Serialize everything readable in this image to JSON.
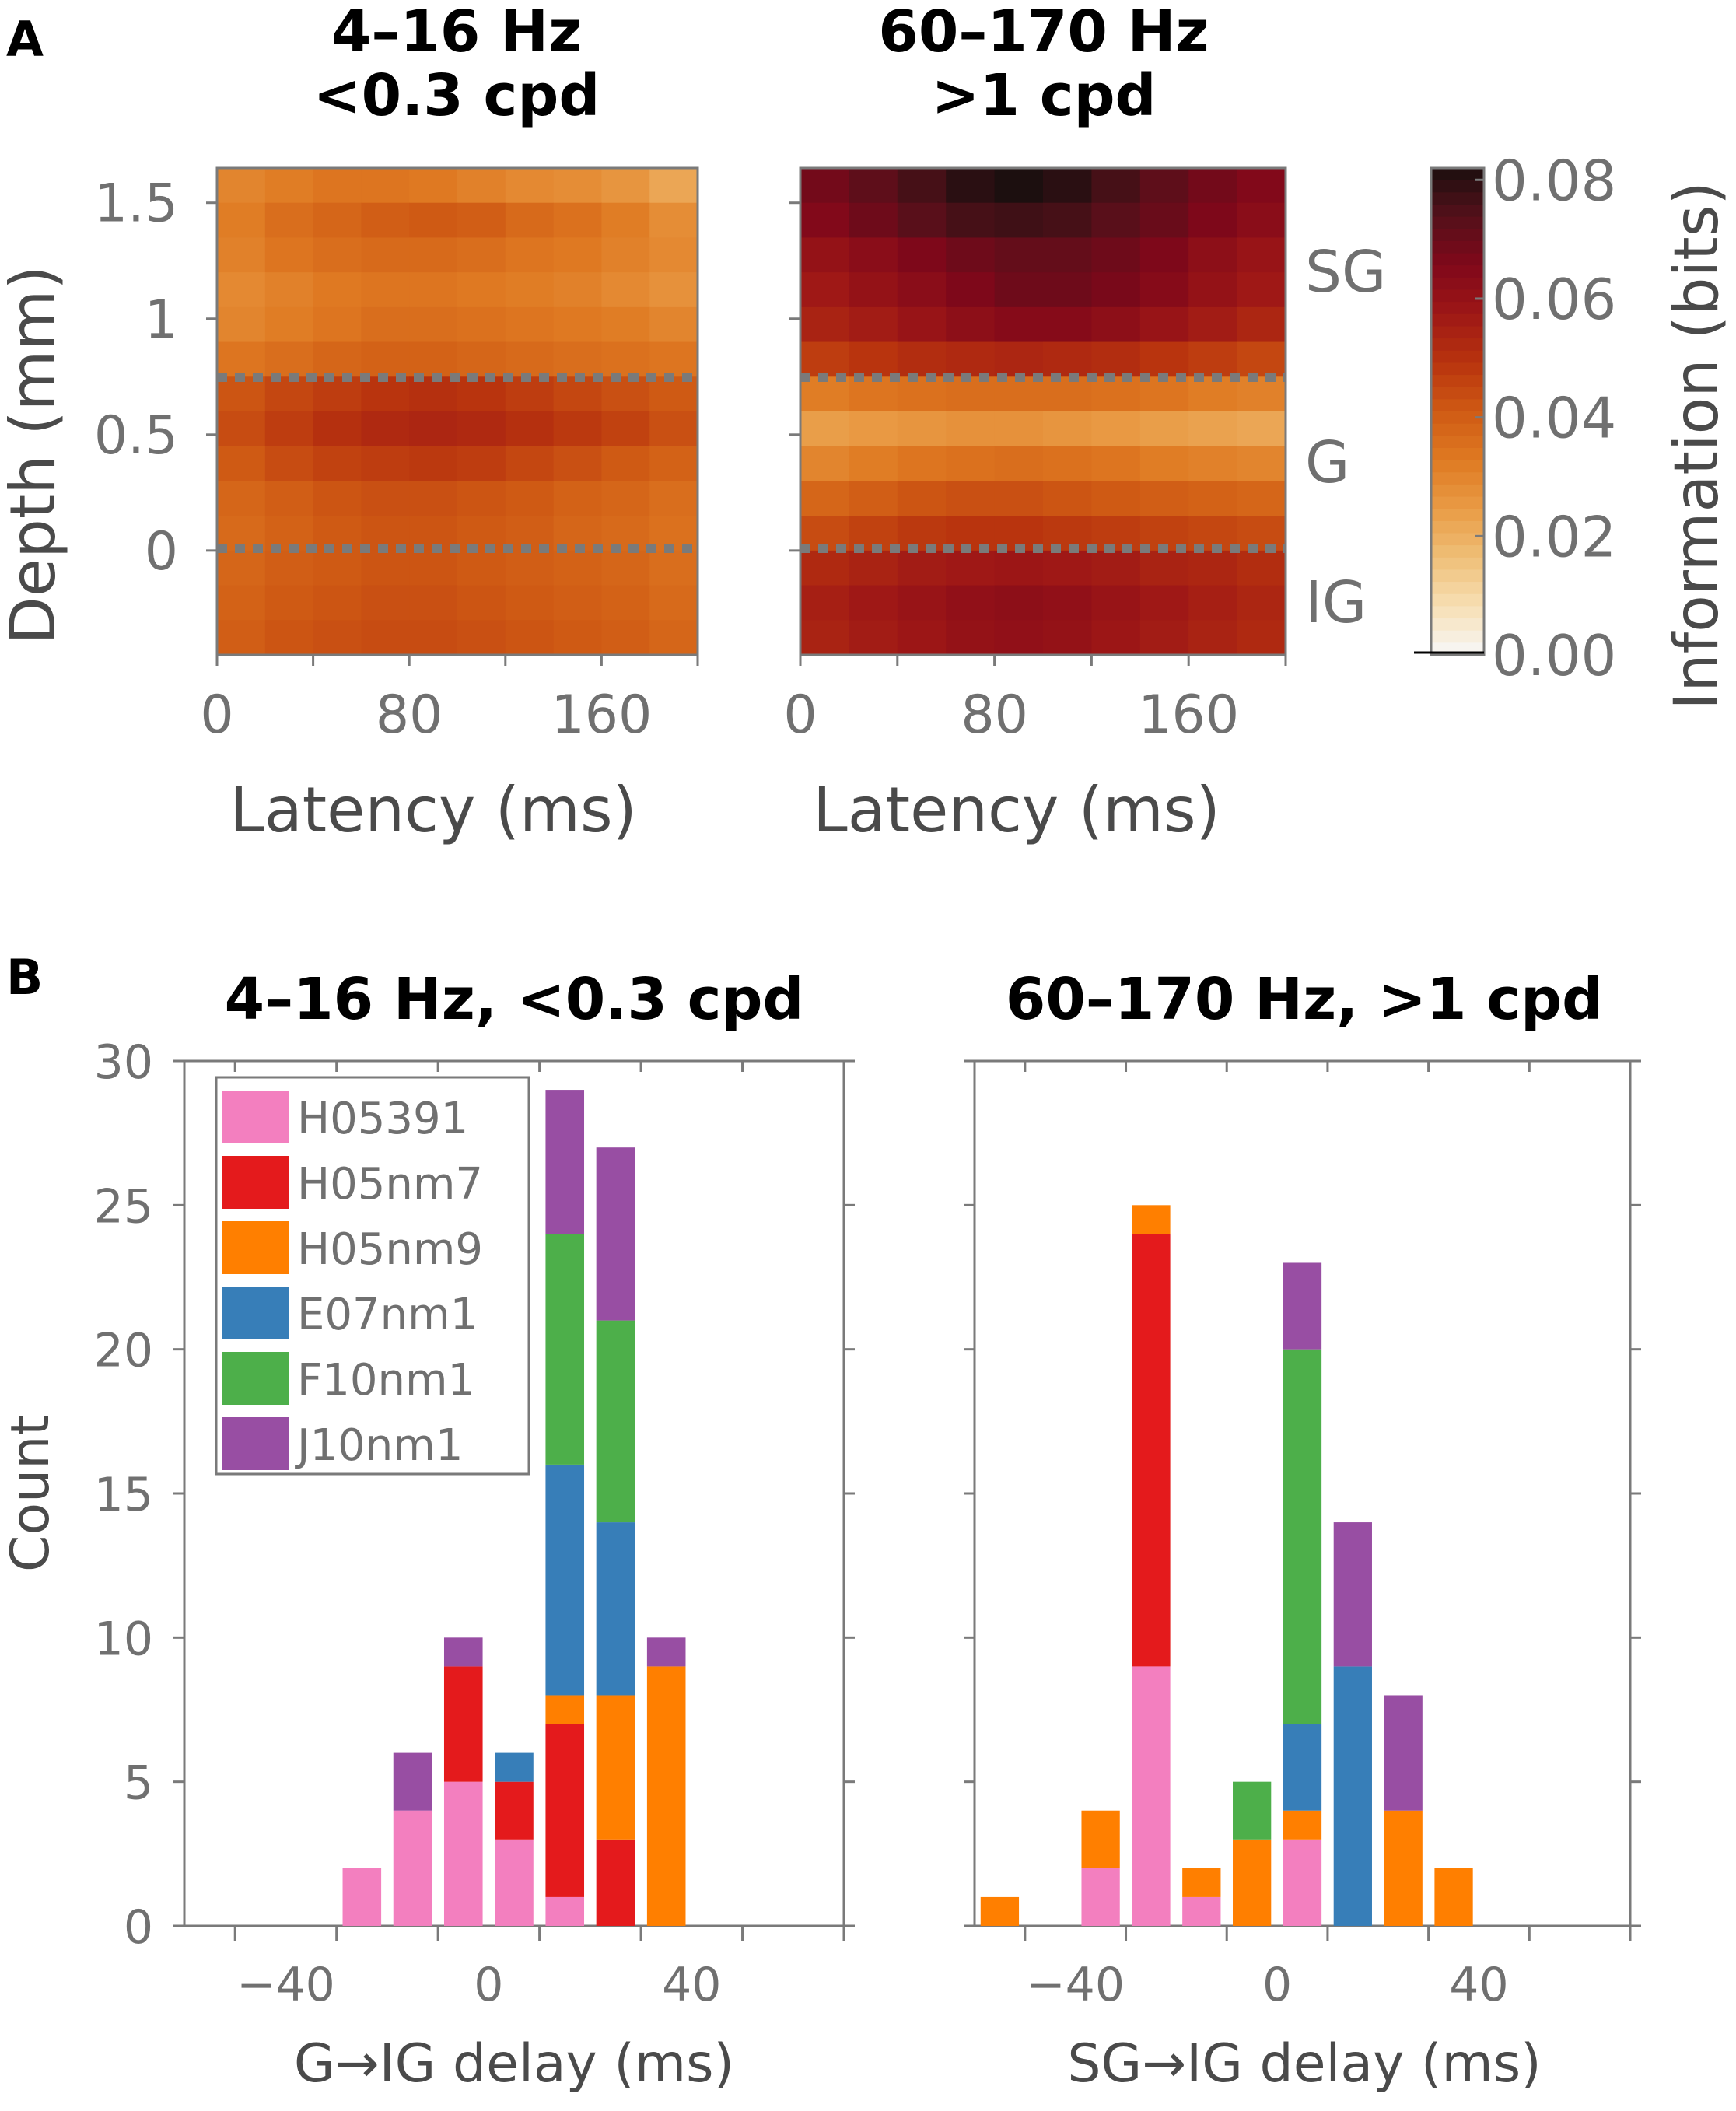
{
  "panel_labels": [
    "A",
    "B"
  ],
  "chart_data": [
    {
      "type": "heatmap",
      "title": "4–16 Hz\n<0.3 cpd",
      "xlabel": "Latency (ms)",
      "ylabel": "Depth (mm)",
      "xticks": [
        0,
        80,
        160
      ],
      "yticks": [
        1.5,
        1,
        0.5,
        0
      ],
      "xlim": [
        0,
        200
      ],
      "ylim": [
        -0.45,
        1.65
      ],
      "layer_boundaries": [
        0.75,
        0
      ],
      "value_range": [
        0,
        0.08
      ],
      "depth_rows": [
        1.6,
        1.45,
        1.3,
        1.15,
        1.0,
        0.85,
        0.7,
        0.55,
        0.4,
        0.25,
        0.1,
        -0.05,
        -0.2,
        -0.35
      ],
      "values": [
        [
          0.03,
          0.032,
          0.034,
          0.034,
          0.033,
          0.031,
          0.029,
          0.028,
          0.026,
          0.022
        ],
        [
          0.032,
          0.036,
          0.038,
          0.04,
          0.041,
          0.04,
          0.037,
          0.035,
          0.032,
          0.028
        ],
        [
          0.031,
          0.034,
          0.036,
          0.037,
          0.037,
          0.036,
          0.034,
          0.033,
          0.031,
          0.029
        ],
        [
          0.029,
          0.031,
          0.033,
          0.034,
          0.034,
          0.033,
          0.032,
          0.031,
          0.029,
          0.027
        ],
        [
          0.03,
          0.032,
          0.034,
          0.036,
          0.036,
          0.035,
          0.034,
          0.033,
          0.032,
          0.03
        ],
        [
          0.034,
          0.036,
          0.038,
          0.039,
          0.039,
          0.038,
          0.037,
          0.036,
          0.035,
          0.034
        ],
        [
          0.042,
          0.045,
          0.047,
          0.049,
          0.05,
          0.049,
          0.047,
          0.045,
          0.043,
          0.041
        ],
        [
          0.044,
          0.047,
          0.05,
          0.052,
          0.053,
          0.052,
          0.05,
          0.048,
          0.046,
          0.043
        ],
        [
          0.041,
          0.044,
          0.046,
          0.047,
          0.048,
          0.047,
          0.045,
          0.043,
          0.041,
          0.039
        ],
        [
          0.038,
          0.04,
          0.042,
          0.043,
          0.043,
          0.042,
          0.041,
          0.039,
          0.038,
          0.036
        ],
        [
          0.037,
          0.039,
          0.041,
          0.042,
          0.042,
          0.041,
          0.04,
          0.038,
          0.037,
          0.035
        ],
        [
          0.038,
          0.04,
          0.041,
          0.042,
          0.042,
          0.041,
          0.04,
          0.039,
          0.038,
          0.036
        ],
        [
          0.039,
          0.041,
          0.042,
          0.043,
          0.043,
          0.042,
          0.041,
          0.04,
          0.039,
          0.037
        ],
        [
          0.04,
          0.042,
          0.043,
          0.044,
          0.044,
          0.043,
          0.042,
          0.041,
          0.04,
          0.038
        ]
      ]
    },
    {
      "type": "heatmap",
      "title": "60–170 Hz\n>1 cpd",
      "xlabel": "Latency (ms)",
      "xticks": [
        0,
        80,
        160
      ],
      "yticks": [
        1.5,
        1,
        0.5,
        0
      ],
      "xlim": [
        0,
        200
      ],
      "ylim": [
        -0.45,
        1.65
      ],
      "layer_boundaries": [
        0.75,
        0
      ],
      "layer_labels": [
        "SG",
        "G",
        "IG"
      ],
      "value_range": [
        0,
        0.08
      ],
      "depth_rows": [
        1.6,
        1.45,
        1.3,
        1.15,
        1.0,
        0.85,
        0.7,
        0.55,
        0.4,
        0.25,
        0.1,
        -0.05,
        -0.2,
        -0.35
      ],
      "values": [
        [
          0.068,
          0.072,
          0.076,
          0.08,
          0.082,
          0.08,
          0.076,
          0.072,
          0.068,
          0.065
        ],
        [
          0.065,
          0.069,
          0.073,
          0.076,
          0.077,
          0.076,
          0.073,
          0.07,
          0.066,
          0.063
        ],
        [
          0.06,
          0.063,
          0.066,
          0.069,
          0.071,
          0.071,
          0.069,
          0.066,
          0.062,
          0.059
        ],
        [
          0.057,
          0.06,
          0.063,
          0.066,
          0.069,
          0.069,
          0.067,
          0.064,
          0.06,
          0.057
        ],
        [
          0.054,
          0.056,
          0.059,
          0.062,
          0.064,
          0.064,
          0.062,
          0.059,
          0.056,
          0.053
        ],
        [
          0.047,
          0.049,
          0.051,
          0.052,
          0.053,
          0.052,
          0.051,
          0.049,
          0.047,
          0.045
        ],
        [
          0.032,
          0.034,
          0.035,
          0.036,
          0.036,
          0.036,
          0.035,
          0.034,
          0.032,
          0.031
        ],
        [
          0.024,
          0.025,
          0.026,
          0.027,
          0.027,
          0.026,
          0.025,
          0.024,
          0.023,
          0.022
        ],
        [
          0.03,
          0.032,
          0.034,
          0.035,
          0.036,
          0.035,
          0.034,
          0.032,
          0.031,
          0.03
        ],
        [
          0.038,
          0.04,
          0.042,
          0.043,
          0.043,
          0.042,
          0.041,
          0.04,
          0.039,
          0.038
        ],
        [
          0.044,
          0.046,
          0.048,
          0.049,
          0.049,
          0.048,
          0.047,
          0.046,
          0.045,
          0.044
        ],
        [
          0.052,
          0.054,
          0.056,
          0.057,
          0.058,
          0.057,
          0.056,
          0.054,
          0.053,
          0.051
        ],
        [
          0.055,
          0.057,
          0.059,
          0.061,
          0.062,
          0.061,
          0.059,
          0.057,
          0.055,
          0.053
        ],
        [
          0.054,
          0.056,
          0.058,
          0.06,
          0.061,
          0.06,
          0.058,
          0.056,
          0.054,
          0.052
        ]
      ]
    },
    {
      "type": "colorbar",
      "label": "Information (bits)",
      "ticks": [
        "0.08",
        "0.06",
        "0.04",
        "0.02",
        "0.00"
      ],
      "tick_values": [
        0.08,
        0.06,
        0.04,
        0.02,
        0.0
      ],
      "range": [
        0,
        0.082
      ],
      "colormap": [
        "#f7f7f7",
        "#f7dfb4",
        "#efbf77",
        "#e99b45",
        "#df7a22",
        "#cf5a14",
        "#b8330e",
        "#9e1716",
        "#80081a",
        "#55101a",
        "#1c0f0f"
      ]
    },
    {
      "type": "bar",
      "stacked": true,
      "title": "4–16 Hz,  <0.3 cpd",
      "xlabel": "G→IG delay (ms)",
      "ylabel": "Count",
      "xticks": [
        -40,
        0,
        40
      ],
      "yticks": [
        0,
        5,
        10,
        15,
        20,
        25,
        30
      ],
      "xlim": [
        -60,
        70
      ],
      "ylim": [
        0,
        30
      ],
      "bin_width": 10,
      "x": [
        -25,
        -15,
        -5,
        5,
        15,
        25,
        35
      ],
      "series": [
        {
          "name": "H05391",
          "color": "#f37fbf",
          "values": [
            2,
            4,
            5,
            3,
            1,
            0,
            0
          ]
        },
        {
          "name": "H05nm7",
          "color": "#e41a1c",
          "values": [
            0,
            0,
            4,
            2,
            6,
            3,
            0
          ]
        },
        {
          "name": "H05nm9",
          "color": "#ff7f00",
          "values": [
            0,
            0,
            0,
            0,
            1,
            5,
            9
          ]
        },
        {
          "name": "E07nm1",
          "color": "#377eb8",
          "values": [
            0,
            0,
            0,
            1,
            8,
            6,
            0
          ]
        },
        {
          "name": "F10nm1",
          "color": "#4daf4a",
          "values": [
            0,
            0,
            0,
            0,
            8,
            7,
            0
          ]
        },
        {
          "name": "J10nm1",
          "color": "#984ea3",
          "values": [
            0,
            2,
            1,
            0,
            5,
            6,
            1
          ]
        }
      ],
      "legend_position": "top-left"
    },
    {
      "type": "bar",
      "stacked": true,
      "title": "60–170 Hz,  >1 cpd",
      "xlabel": "SG→IG delay (ms)",
      "xticks": [
        -40,
        0,
        40
      ],
      "yticks": [
        0,
        5,
        10,
        15,
        20,
        25,
        30
      ],
      "xlim": [
        -60,
        70
      ],
      "ylim": [
        0,
        30
      ],
      "bin_width": 10,
      "x": [
        -55,
        -45,
        -35,
        -25,
        -15,
        -5,
        5,
        15,
        25,
        35
      ],
      "series": [
        {
          "name": "H05391",
          "color": "#f37fbf",
          "values": [
            0,
            0,
            2,
            9,
            1,
            0,
            3,
            0,
            0,
            0
          ]
        },
        {
          "name": "H05nm7",
          "color": "#e41a1c",
          "values": [
            0,
            0,
            0,
            15,
            0,
            0,
            0,
            0,
            0,
            0
          ]
        },
        {
          "name": "H05nm9",
          "color": "#ff7f00",
          "values": [
            1,
            0,
            2,
            1,
            1,
            3,
            1,
            0,
            4,
            2
          ]
        },
        {
          "name": "E07nm1",
          "color": "#377eb8",
          "values": [
            0,
            0,
            0,
            0,
            0,
            0,
            3,
            9,
            0,
            0
          ]
        },
        {
          "name": "F10nm1",
          "color": "#4daf4a",
          "values": [
            0,
            0,
            0,
            0,
            0,
            2,
            13,
            0,
            0,
            0
          ]
        },
        {
          "name": "J10nm1",
          "color": "#984ea3",
          "values": [
            0,
            0,
            0,
            0,
            0,
            0,
            3,
            5,
            4,
            0
          ]
        }
      ]
    }
  ]
}
